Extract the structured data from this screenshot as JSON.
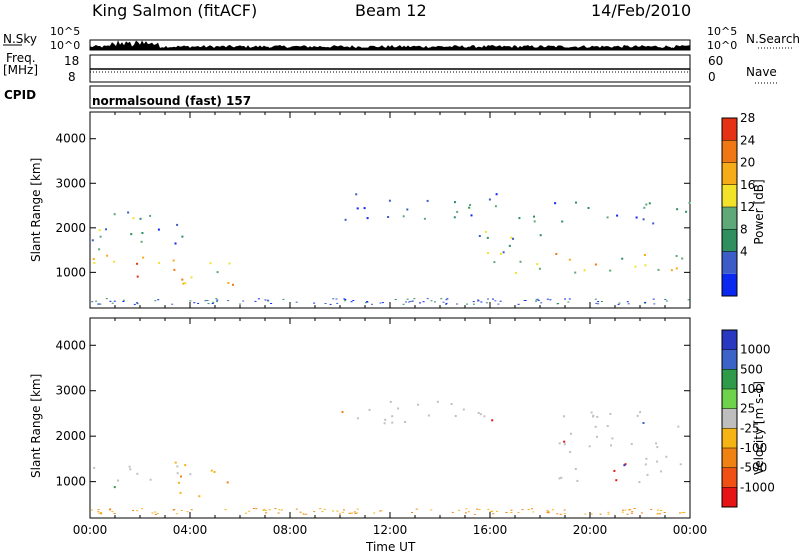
{
  "header": {
    "radar": "King Salmon (fitACF)",
    "beam": "Beam 12",
    "date": "14/Feb/2010"
  },
  "noise_panel": {
    "left_label": "N.Sky",
    "right_label": "N.Search",
    "ticks": [
      "10^5",
      "10^0"
    ]
  },
  "freq_panel": {
    "left_label_line1": "Freq.",
    "left_label_line2": "[MHz]",
    "left_ticks": [
      "18",
      "8"
    ],
    "right_label": "Nave",
    "right_ticks": [
      "60",
      "0"
    ]
  },
  "cpid_panel": {
    "label": "CPID",
    "program": "normalsound (fast) 157"
  },
  "colors": {
    "power": [
      "#0a28f0",
      "#3c5cc8",
      "#2f8f5f",
      "#5fa878",
      "#f2e22a",
      "#f5ac18",
      "#f07814",
      "#e63214"
    ],
    "velocity": [
      "#2838c0",
      "#3c64c8",
      "#2f9a4a",
      "#6ed24a",
      "#bebebe",
      "#f5b414",
      "#f08214",
      "#f05014",
      "#e61414"
    ],
    "line": "#000000",
    "ground": "#c0c0c0"
  },
  "chart_data": [
    {
      "type": "heatmap",
      "name": "power",
      "ylabel": "Slant Range [km]",
      "yticks": [
        "4000",
        "3000",
        "2000",
        "1000"
      ],
      "ylim": [
        200,
        4600
      ],
      "colorbar_label": "Power [dB]",
      "colorbar_ticks": [
        "28",
        "24",
        "20",
        "16",
        "12",
        "8",
        "4"
      ],
      "colorbar_range": [
        0,
        32
      ],
      "xlim": [
        "00:00",
        "24:00"
      ],
      "features": [
        {
          "t": [
            0.0,
            4.2
          ],
          "range_km": [
            900,
            1400
          ],
          "dB": 24
        },
        {
          "t": [
            3.3,
            5.9
          ],
          "range_km": [
            700,
            1500
          ],
          "dB": 22
        },
        {
          "t": [
            0.0,
            4.2
          ],
          "range_km": [
            1500,
            2400
          ],
          "dB": 10
        },
        {
          "t": [
            9.0,
            16.5
          ],
          "range_km": [
            2200,
            2800
          ],
          "dB": 8
        },
        {
          "t": [
            15.5,
            18.3
          ],
          "range_km": [
            1000,
            2400
          ],
          "dB": 12
        },
        {
          "t": [
            18.5,
            24.0
          ],
          "range_km": [
            900,
            1500
          ],
          "dB": 18
        },
        {
          "t": [
            18.5,
            24.0
          ],
          "range_km": [
            2000,
            2600
          ],
          "dB": 8
        }
      ]
    },
    {
      "type": "heatmap",
      "name": "velocity",
      "ylabel": "Slant Range [km]",
      "yticks": [
        "4000",
        "3000",
        "2000",
        "1000"
      ],
      "ylim": [
        200,
        4600
      ],
      "colorbar_label": "Velocity [m s-1]",
      "colorbar_ticks": [
        "1000",
        "500",
        "100",
        "25",
        "-25",
        "-100",
        "-500",
        "-1000"
      ],
      "xlim": [
        "00:00",
        "24:00"
      ],
      "xticks": [
        "00:00",
        "04:00",
        "08:00",
        "12:00",
        "16:00",
        "20:00",
        "00:00"
      ],
      "xlabel": "Time UT",
      "features": [
        {
          "t": [
            0.0,
            4.2
          ],
          "range_km": [
            900,
            1400
          ],
          "v": 0
        },
        {
          "t": [
            3.3,
            5.9
          ],
          "range_km": [
            700,
            1500
          ],
          "v": -200
        },
        {
          "t": [
            9.0,
            16.5
          ],
          "range_km": [
            2200,
            2800
          ],
          "v": 0
        },
        {
          "t": [
            18.5,
            24.0
          ],
          "range_km": [
            1000,
            2600
          ],
          "v": 0
        }
      ]
    }
  ]
}
